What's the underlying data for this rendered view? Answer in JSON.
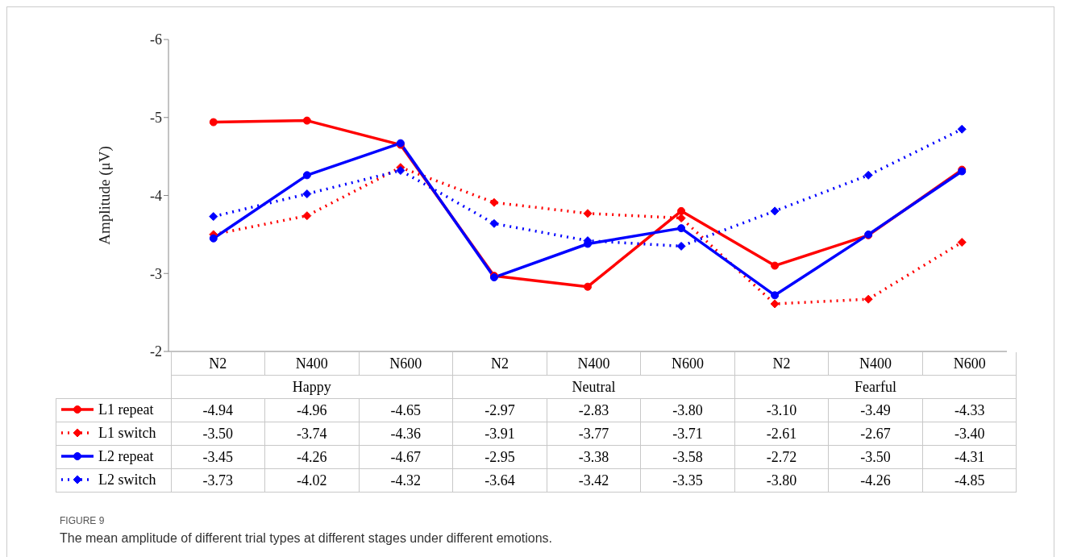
{
  "chart_data": {
    "type": "line",
    "ylabel": "Amplitude (μV)",
    "categories": [
      "N2",
      "N400",
      "N600",
      "N2",
      "N400",
      "N600",
      "N2",
      "N400",
      "N600"
    ],
    "ylim": [
      -2,
      -6
    ],
    "yticks": [
      -6,
      -5,
      -4,
      -3,
      -2
    ],
    "legend": "bottom left",
    "series": [
      {
        "name": "L1 repeat",
        "color": "#ff0000",
        "marker": "circle",
        "line_style": "solid",
        "values": [
          -4.94,
          -4.96,
          -4.65,
          -2.97,
          -2.83,
          -3.8,
          -3.1,
          -3.49,
          -4.33
        ],
        "value_labels": [
          "-4.94",
          "-4.96",
          "-4.65",
          "-2.97",
          "-2.83",
          "-3.80",
          "-3.10",
          "-3.49",
          "-4.33"
        ]
      },
      {
        "name": "L1 switch",
        "color": "#ff0000",
        "marker": "diamond",
        "line_style": "dotted",
        "values": [
          -3.5,
          -3.74,
          -4.36,
          -3.91,
          -3.77,
          -3.71,
          -2.61,
          -2.67,
          -3.4
        ],
        "value_labels": [
          "-3.50",
          "-3.74",
          "-4.36",
          "-3.91",
          "-3.77",
          "-3.71",
          "-2.61",
          "-2.67",
          "-3.40"
        ]
      },
      {
        "name": "L2 repeat",
        "color": "#0000ff",
        "marker": "circle",
        "line_style": "solid",
        "values": [
          -3.45,
          -4.26,
          -4.67,
          -2.95,
          -3.38,
          -3.58,
          -2.72,
          -3.5,
          -4.31
        ],
        "value_labels": [
          "-3.45",
          "-4.26",
          "-4.67",
          "-2.95",
          "-3.38",
          "-3.58",
          "-2.72",
          "-3.50",
          "-4.31"
        ]
      },
      {
        "name": "L2 switch",
        "color": "#0000ff",
        "marker": "diamond",
        "line_style": "dotted",
        "values": [
          -3.73,
          -4.02,
          -4.32,
          -3.64,
          -3.42,
          -3.35,
          -3.8,
          -4.26,
          -4.85
        ],
        "value_labels": [
          "-3.73",
          "-4.02",
          "-4.32",
          "-3.64",
          "-3.42",
          "-3.35",
          "-3.80",
          "-4.26",
          "-4.85"
        ]
      }
    ],
    "annotations": [
      "Happy",
      "Neutral",
      "Fearful",
      "FIGURE 9",
      "The mean amplitude of different trial types at different stages under different emotions."
    ]
  }
}
